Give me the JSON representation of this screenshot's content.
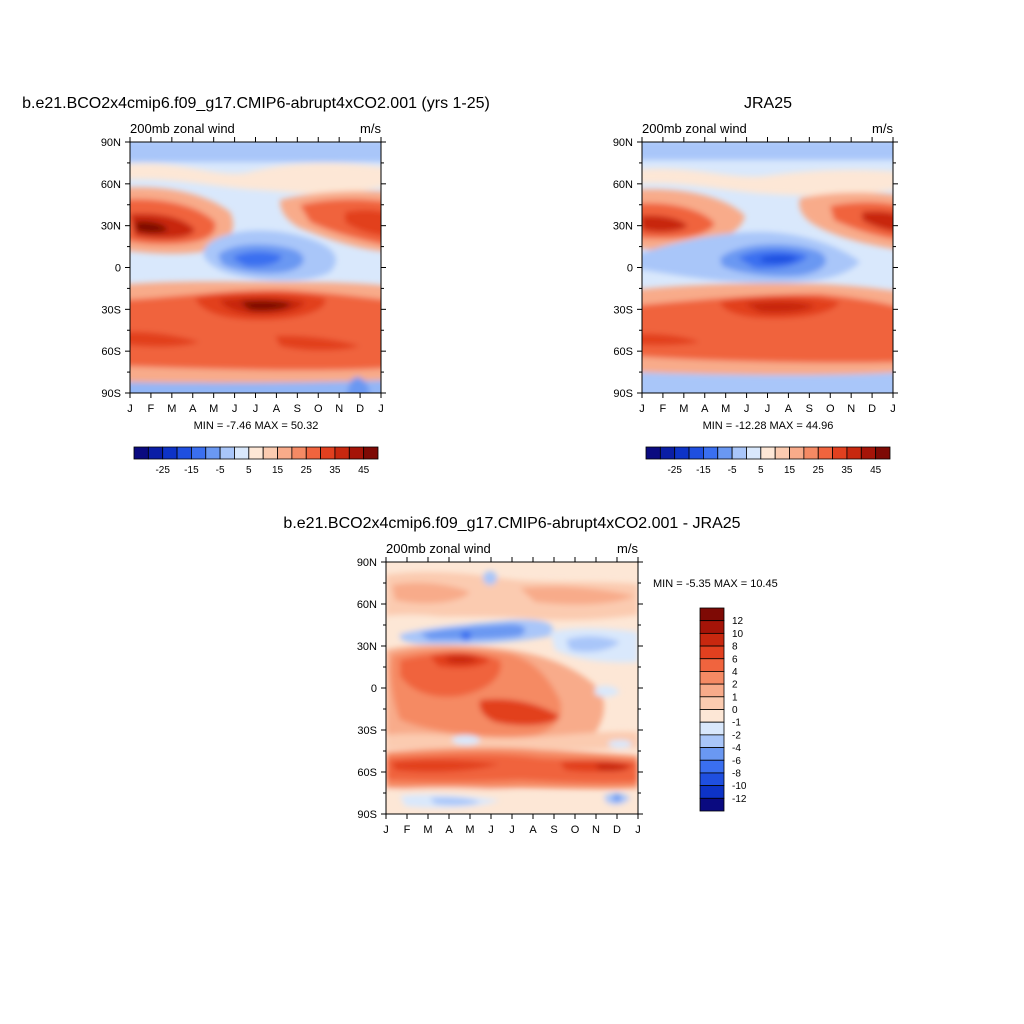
{
  "panels": [
    {
      "title": "b.e21.BCO2x4cmip6.f09_g17.CMIP6-abrupt4xCO2.001 (yrs 1-25)",
      "left_label": "200mb zonal wind",
      "right_label": "m/s",
      "min_max": "MIN =  -7.46 MAX =  50.32"
    },
    {
      "title": "JRA25",
      "left_label": "200mb zonal wind",
      "right_label": "m/s",
      "min_max": "MIN =  -12.28 MAX =  44.96"
    },
    {
      "title": "b.e21.BCO2x4cmip6.f09_g17.CMIP6-abrupt4xCO2.001 - JRA25",
      "left_label": "200mb zonal wind",
      "right_label": "m/s",
      "min_max": "MIN =  -5.35 MAX =  10.45"
    }
  ],
  "chart_data": [
    {
      "type": "heatmap",
      "name": "b.e21.BCO2x4cmip6.f09_g17.CMIP6-abrupt4xCO2.001 (yrs 1-25)",
      "variable": "200mb zonal wind",
      "units": "m/s",
      "x_ticks": [
        "J",
        "F",
        "M",
        "A",
        "M",
        "J",
        "J",
        "A",
        "S",
        "O",
        "N",
        "D",
        "J"
      ],
      "y_ticks": [
        "90N",
        "60N",
        "30N",
        "0",
        "30S",
        "60S",
        "90S"
      ],
      "ylim": [
        -90,
        90
      ],
      "min": -7.46,
      "max": 50.32,
      "colorbar_levels": [
        -30,
        -25,
        -20,
        -15,
        -10,
        -5,
        0,
        5,
        10,
        15,
        20,
        25,
        30,
        35,
        40,
        45
      ],
      "colorbar_tick_labels": [
        "-25",
        "-15",
        "-5",
        "5",
        "15",
        "25",
        "35",
        "45"
      ],
      "colorbar_colors": [
        "#0a0a80",
        "#0a1ea6",
        "#0d33c7",
        "#1f4fe0",
        "#3a6ff0",
        "#6a98f2",
        "#a9c6f9",
        "#d9e8fc",
        "#fde7d6",
        "#fbcbb0",
        "#f8ab8a",
        "#f58a64",
        "#f0643e",
        "#e2401f",
        "#c8280f",
        "#a51408",
        "#7e0a05"
      ],
      "grid": false
    },
    {
      "type": "heatmap",
      "name": "JRA25",
      "variable": "200mb zonal wind",
      "units": "m/s",
      "x_ticks": [
        "J",
        "F",
        "M",
        "A",
        "M",
        "J",
        "J",
        "A",
        "S",
        "O",
        "N",
        "D",
        "J"
      ],
      "y_ticks": [
        "90N",
        "60N",
        "30N",
        "0",
        "30S",
        "60S",
        "90S"
      ],
      "ylim": [
        -90,
        90
      ],
      "min": -12.28,
      "max": 44.96,
      "colorbar_levels": [
        -30,
        -25,
        -20,
        -15,
        -10,
        -5,
        0,
        5,
        10,
        15,
        20,
        25,
        30,
        35,
        40,
        45
      ],
      "colorbar_tick_labels": [
        "-25",
        "-15",
        "-5",
        "5",
        "15",
        "25",
        "35",
        "45"
      ],
      "colorbar_colors": [
        "#0a0a80",
        "#0a1ea6",
        "#0d33c7",
        "#1f4fe0",
        "#3a6ff0",
        "#6a98f2",
        "#a9c6f9",
        "#d9e8fc",
        "#fde7d6",
        "#fbcbb0",
        "#f8ab8a",
        "#f58a64",
        "#f0643e",
        "#e2401f",
        "#c8280f",
        "#a51408",
        "#7e0a05"
      ],
      "grid": false
    },
    {
      "type": "heatmap",
      "name": "b.e21.BCO2x4cmip6.f09_g17.CMIP6-abrupt4xCO2.001 - JRA25",
      "variable": "200mb zonal wind",
      "units": "m/s",
      "x_ticks": [
        "J",
        "F",
        "M",
        "A",
        "M",
        "J",
        "J",
        "A",
        "S",
        "O",
        "N",
        "D",
        "J"
      ],
      "y_ticks": [
        "90N",
        "60N",
        "30N",
        "0",
        "30S",
        "60S",
        "90S"
      ],
      "ylim": [
        -90,
        90
      ],
      "min": -5.35,
      "max": 10.45,
      "colorbar_levels": [
        -12,
        -10,
        -8,
        -6,
        -4,
        -2,
        -1,
        0,
        1,
        2,
        4,
        6,
        8,
        10,
        12
      ],
      "colorbar_tick_labels": [
        "12",
        "10",
        "8",
        "6",
        "4",
        "2",
        "1",
        "0",
        "-1",
        "-2",
        "-4",
        "-6",
        "-8",
        "-10",
        "-12"
      ],
      "colorbar_colors": [
        "#7e0a05",
        "#a51408",
        "#c8280f",
        "#e2401f",
        "#f0643e",
        "#f58a64",
        "#f8ab8a",
        "#fbcbb0",
        "#fde7d6",
        "#d9e8fc",
        "#a9c6f9",
        "#6a98f2",
        "#3a6ff0",
        "#1f4fe0",
        "#0d33c7",
        "#0a0a80"
      ],
      "colorbar_orientation": "vertical",
      "grid": false
    }
  ]
}
